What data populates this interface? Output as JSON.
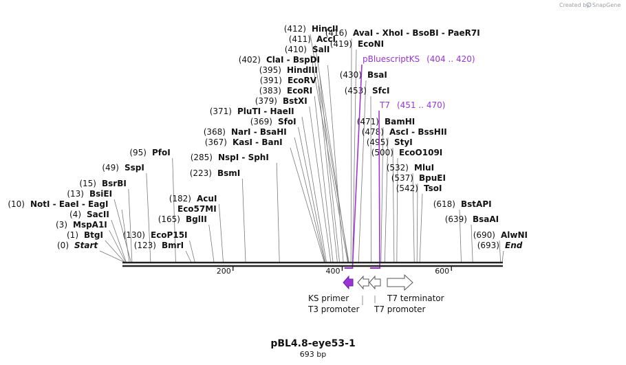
{
  "credit": {
    "created_by": "Created by",
    "brand": "SnapGene"
  },
  "plasmid": {
    "name": "pBL4.8-eye53-1",
    "length_label": "693 bp",
    "length": 693
  },
  "ticks": [
    {
      "value": 200,
      "label": "200"
    },
    {
      "value": 400,
      "label": "400"
    },
    {
      "value": 600,
      "label": "600"
    }
  ],
  "enzymes": [
    {
      "name": "Start",
      "pos": "(0)",
      "site": 0,
      "italic": true
    },
    {
      "name": "BtgI",
      "pos": "(1)",
      "site": 1
    },
    {
      "name": "MspA1I",
      "pos": "(3)",
      "site": 3
    },
    {
      "name": "SacII",
      "pos": "(4)",
      "site": 4
    },
    {
      "name": "NotI  -  EaeI  -  EagI",
      "pos": "(10)",
      "site": 10
    },
    {
      "name": "BsiEI",
      "pos": "(13)",
      "site": 13
    },
    {
      "name": "BsrBI",
      "pos": "(15)",
      "site": 15
    },
    {
      "name": "SspI",
      "pos": "(49)",
      "site": 49
    },
    {
      "name": "PfoI",
      "pos": "(95)",
      "site": 95
    },
    {
      "name": "EcoP15I",
      "pos": "(130)",
      "site": 130
    },
    {
      "name": "BmrI",
      "pos": "(123)",
      "site": 123
    },
    {
      "name": "BglII",
      "pos": "(165)",
      "site": 165
    },
    {
      "name": "Eco57MI",
      "pos": "",
      "site": 182
    },
    {
      "name": "AcuI",
      "pos": "(182)",
      "site": 182
    },
    {
      "name": "BsmI",
      "pos": "(223)",
      "site": 223
    },
    {
      "name": "NspI  -  SphI",
      "pos": "(285)",
      "site": 285
    },
    {
      "name": "KasI  -  BanI",
      "pos": "(367)",
      "site": 367
    },
    {
      "name": "NarI  -  BsaHI",
      "pos": "(368)",
      "site": 368
    },
    {
      "name": "SfoI",
      "pos": "(369)",
      "site": 369
    },
    {
      "name": "PluTI  -  HaeII",
      "pos": "(371)",
      "site": 371
    },
    {
      "name": "BstXI",
      "pos": "(379)",
      "site": 379
    },
    {
      "name": "EcoRI",
      "pos": "(383)",
      "site": 383
    },
    {
      "name": "EcoRV",
      "pos": "(391)",
      "site": 391
    },
    {
      "name": "HindIII",
      "pos": "(395)",
      "site": 395
    },
    {
      "name": "ClaI  -  BspDI",
      "pos": "(402)",
      "site": 402
    },
    {
      "name": "SalI",
      "pos": "(410)",
      "site": 410
    },
    {
      "name": "AccI",
      "pos": "(411)",
      "site": 411
    },
    {
      "name": "HincII",
      "pos": "(412)",
      "site": 412
    },
    {
      "name": "AvaI  -  XhoI  -  BsoBI  -  PaeR7I",
      "pos": "(416)",
      "site": 416
    },
    {
      "name": "EcoNI",
      "pos": "(419)",
      "site": 419
    },
    {
      "name": "BsaI",
      "pos": "(430)",
      "site": 430
    },
    {
      "name": "SfcI",
      "pos": "(453)",
      "site": 453
    },
    {
      "name": "BamHI",
      "pos": "(471)",
      "site": 471
    },
    {
      "name": "AscI  -  BssHII",
      "pos": "(478)",
      "site": 478
    },
    {
      "name": "StyI",
      "pos": "(495)",
      "site": 495
    },
    {
      "name": "EcoO109I",
      "pos": "(500)",
      "site": 500
    },
    {
      "name": "MluI",
      "pos": "(532)",
      "site": 532
    },
    {
      "name": "BpuEI",
      "pos": "(537)",
      "site": 537
    },
    {
      "name": "TsoI",
      "pos": "(542)",
      "site": 542
    },
    {
      "name": "BstAPI",
      "pos": "(618)",
      "site": 618
    },
    {
      "name": "BsaAI",
      "pos": "(639)",
      "site": 639
    },
    {
      "name": "AlwNI",
      "pos": "(690)",
      "site": 690
    },
    {
      "name": "End",
      "pos": "(693)",
      "site": 693,
      "italic": true
    }
  ],
  "primers": [
    {
      "name": "pBluescriptKS",
      "range": "(404 .. 420)",
      "start": 404,
      "end": 420
    },
    {
      "name": "T7",
      "range": "(451 .. 470)",
      "start": 451,
      "end": 470
    }
  ],
  "features": [
    {
      "name": "KS primer",
      "direction": "left",
      "color": "#9a34d6"
    },
    {
      "name": "T3 promoter",
      "direction": "left",
      "color": "#ffffff"
    },
    {
      "name": "T7 promoter",
      "direction": "left",
      "color": "#ffffff"
    },
    {
      "name": "T7 terminator",
      "direction": "right",
      "color": "#ffffff"
    }
  ],
  "colors": {
    "primer": "#9a34d6",
    "backbone": "#222222",
    "leader": "#777777"
  }
}
